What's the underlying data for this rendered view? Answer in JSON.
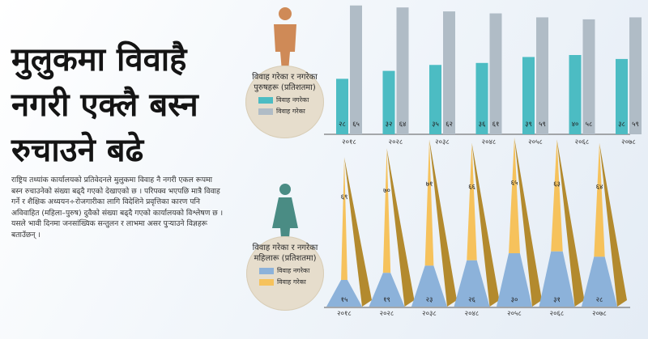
{
  "title": "मुलुकमा विवाहै नगरी एक्लै बस्न रुचाउने बढे",
  "description": "राष्ट्रिय तथ्यांक कार्यालयको प्रतिवेदनले मुलुकमा विवाह नै नगरी एकल रूपमा बस्न रुचाउनेको संख्या बढ्दै गएको देखाएको छ । परिपक्व भएपछि मात्रै विवाह गर्ने र शैक्षिक अध्ययन÷रोजगारीका लागि विदेशिने प्रवृत्तिका कारण पनि अविवाहित (महिला–पुरुष) दुवैको संख्या बढ्दै गएको कार्यालयको विश्लेषण छ । यसले भावी दिनमा जनसांख्यिक सन्तुलन र लाभमा असर पुऱ्याउने विज्ञहरू बताउँछन् ।",
  "men_legend": {
    "title": "विवाह गरेका र नगरेका पुरुषहरू (प्रतिशतमा)",
    "items": [
      {
        "label": "विवाह नगरेका",
        "color": "#4cbcc3"
      },
      {
        "label": "विवाह गरेका",
        "color": "#b0bcc6"
      }
    ]
  },
  "women_legend": {
    "title": "विवाह गरेका र नगरेका महिलारू (प्रतिशतमा)",
    "items": [
      {
        "label": "विवाह नगरेका",
        "color": "#8cb2da"
      },
      {
        "label": "विवाह गरेका",
        "color": "#f6c25c"
      }
    ]
  },
  "chart_data": [
    {
      "type": "bar",
      "categories": [
        "२०१८",
        "२०२८",
        "२०३८",
        "२०४८",
        "२०५८",
        "२०६८",
        "२०७८"
      ],
      "category_labels": [
        "२०१८",
        "२०२८",
        "२०३८",
        "२०४८",
        "२०५८",
        "२०६८",
        "२०७८"
      ],
      "series": [
        {
          "name": "विवाह नगरेका",
          "values": [
            28,
            32,
            35,
            36,
            39,
            40,
            38
          ],
          "labels": [
            "२८",
            "३२",
            "३५",
            "३६",
            "३९",
            "४०",
            "३८"
          ],
          "color": "#4cbcc3"
        },
        {
          "name": "विवाह गरेका",
          "values": [
            65,
            64,
            62,
            61,
            59,
            58,
            59
          ],
          "labels": [
            "६५",
            "६४",
            "६२",
            "६१",
            "५९",
            "५८",
            "५९"
          ],
          "color": "#b0bcc6"
        }
      ],
      "ylim": [
        0,
        100
      ]
    },
    {
      "type": "bar",
      "categories": [
        "२०१८",
        "२०२८",
        "२०३८",
        "२०४८",
        "२०५८",
        "२०६८",
        "२०७८"
      ],
      "category_labels": [
        "२०१८",
        "२०२८",
        "२०३८",
        "२०४८",
        "२०५८",
        "२०६८",
        "२०७८"
      ],
      "series": [
        {
          "name": "विवाह नगरेका",
          "values": [
            15,
            19,
            23,
            26,
            30,
            31,
            28
          ],
          "labels": [
            "१५",
            "१९",
            "२३",
            "२६",
            "३०",
            "३१",
            "२८"
          ],
          "color": "#8cb2da"
        },
        {
          "name": "विवाह गरेका",
          "values": [
            69,
            70,
            71,
            66,
            65,
            63,
            64
          ],
          "labels": [
            "६९",
            "७०",
            "७१",
            "६६",
            "६५",
            "६३",
            "६४"
          ],
          "color": "#f6c25c"
        }
      ],
      "ylim": [
        0,
        100
      ]
    }
  ],
  "colors": {
    "man_figure": "#cf8a57",
    "woman_figure": "#4a8c84",
    "pyramid_side": "#b38a2e",
    "axis": "#5a5a5a"
  }
}
